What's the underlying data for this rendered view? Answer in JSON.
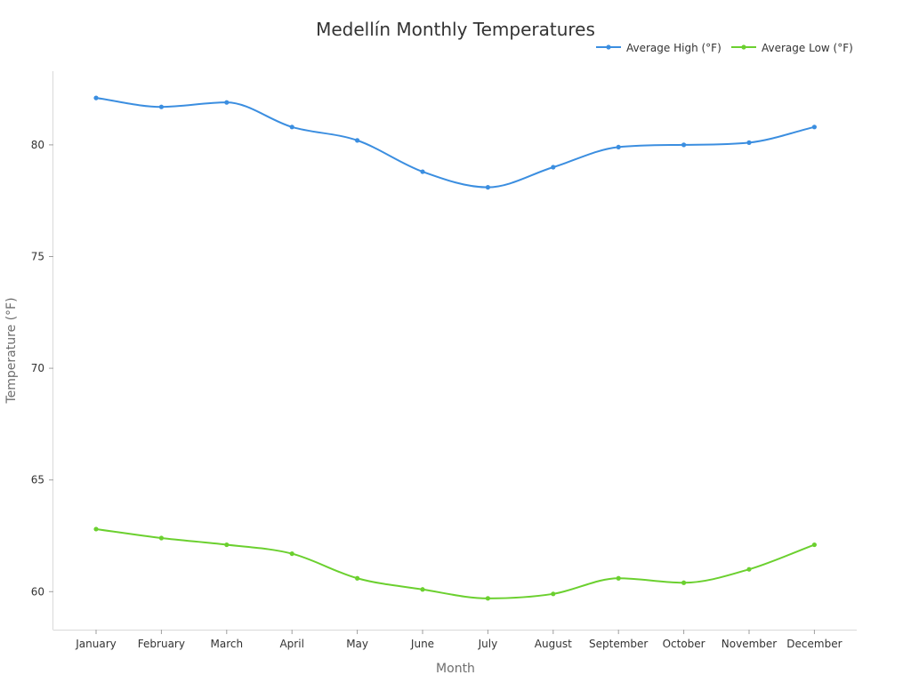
{
  "chart_data": {
    "type": "line",
    "title": "Medellín Monthly Temperatures",
    "xlabel": "Month",
    "ylabel": "Temperature (°F)",
    "categories": [
      "January",
      "February",
      "March",
      "April",
      "May",
      "June",
      "July",
      "August",
      "September",
      "October",
      "November",
      "December"
    ],
    "ylim": [
      58.3,
      83.3
    ],
    "yticks": [
      60,
      65,
      70,
      75,
      80
    ],
    "grid": false,
    "legend_position": "top-right",
    "series": [
      {
        "name": "Average High (°F)",
        "color": "#3b8ee0",
        "values": [
          82.1,
          81.7,
          81.9,
          80.8,
          80.2,
          78.8,
          78.1,
          79.0,
          79.9,
          80.0,
          80.1,
          80.8
        ]
      },
      {
        "name": "Average Low (°F)",
        "color": "#6bd02f",
        "values": [
          62.8,
          62.4,
          62.1,
          61.7,
          60.6,
          60.1,
          59.7,
          59.9,
          60.6,
          60.4,
          61.0,
          62.1
        ]
      }
    ]
  }
}
